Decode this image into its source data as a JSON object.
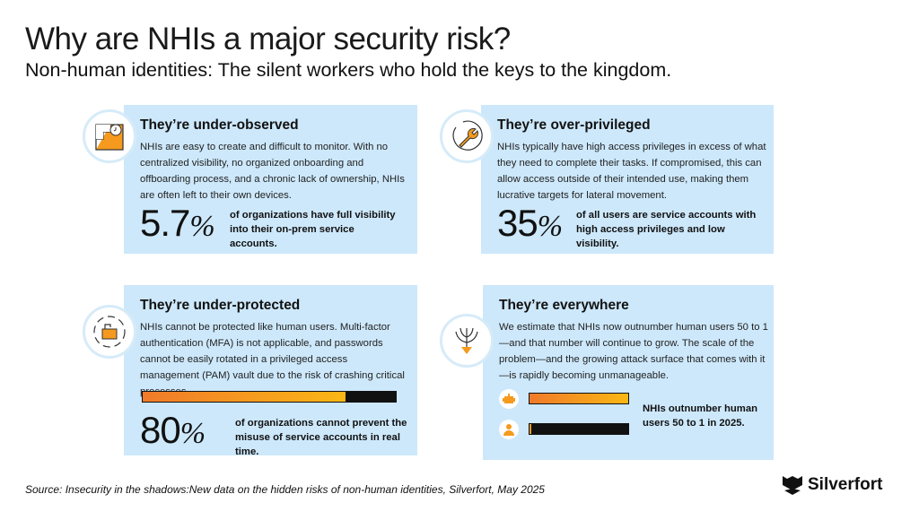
{
  "header": {
    "title": "Why are NHIs a major security risk?",
    "subtitle": "Non-human identities: The silent workers who hold the keys to the kingdom."
  },
  "cards": [
    {
      "title": "They’re under-observed",
      "body": "NHIs are easy to create and difficult to monitor. With no centralized visibility, no organized onboarding and offboarding process, and a chronic lack of ownership, NHIs are often left to their own devices.",
      "stat_value": "5.7",
      "stat_unit": "%",
      "stat_text": "of organizations have full visibility into their on-prem service accounts.",
      "icon": "stairs-clock-icon"
    },
    {
      "title": "They’re over-privileged",
      "body": "NHIs typically have high access privileges in excess of what they need to complete their tasks. If compromised, this can allow access outside of their intended use, making them lucrative targets for lateral movement.",
      "stat_value": "35",
      "stat_unit": "%",
      "stat_text": "of all users are service accounts with high access privileges and low visibility.",
      "icon": "wrench-icon"
    },
    {
      "title": "They’re under-protected",
      "body": "NHIs cannot be protected like human users. Multi-factor authentication (MFA) is not applicable, and passwords cannot be easily rotated in a privileged access management (PAM) vault due to the risk of crashing critical processes.",
      "stat_value": "80",
      "stat_unit": "%",
      "stat_text": "of organizations cannot prevent the misuse of service accounts in real time.",
      "progress_percent": 80,
      "icon": "unlocked-padlock-icon"
    },
    {
      "title": "They’re everywhere",
      "body": "We estimate that NHIs now outnumber human users 50 to 1—and that number will continue to grow. The scale of the problem—and the growing attack surface that comes with it—is rapidly becoming unmanageable.",
      "stat_text": "NHIs outnumber human users 50 to 1 in 2025.",
      "nhi_fraction": 1.0,
      "human_fraction": 0.02,
      "icon": "branching-arrow-icon"
    }
  ],
  "footer": {
    "source": "Source: Insecurity in the shadows:New data on the hidden risks of non-human identities, Silverfort, May 2025",
    "brand": "Silverfort"
  },
  "colors": {
    "card_bg": "#cde8fb",
    "accent_orange": "#f07a2a",
    "accent_yellow": "#fbb715"
  }
}
